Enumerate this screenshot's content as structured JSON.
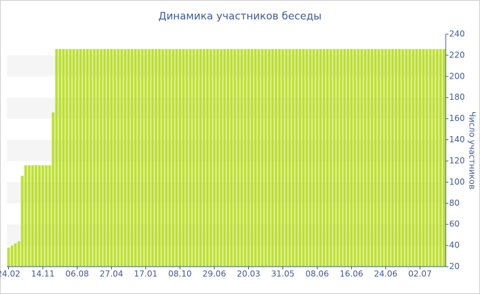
{
  "chart_data": {
    "type": "bar",
    "title": "Динамика участников беседы",
    "y_label": "Число участников",
    "color": "#bde033",
    "ylim": [
      20,
      240
    ],
    "yticks": [
      20,
      40,
      60,
      80,
      100,
      120,
      140,
      160,
      180,
      200,
      220,
      240
    ],
    "y_axis_side": "right",
    "grid": "bands",
    "categories": [
      "24.02",
      null,
      null,
      null,
      null,
      null,
      null,
      null,
      null,
      null,
      "14.11",
      null,
      null,
      null,
      null,
      null,
      null,
      null,
      null,
      null,
      "06.08",
      null,
      null,
      null,
      null,
      null,
      null,
      null,
      null,
      null,
      "27.04",
      null,
      null,
      null,
      null,
      null,
      null,
      null,
      null,
      null,
      "17.01",
      null,
      null,
      null,
      null,
      null,
      null,
      null,
      null,
      null,
      "08.10",
      null,
      null,
      null,
      null,
      null,
      null,
      null,
      null,
      null,
      "29.06",
      null,
      null,
      null,
      null,
      null,
      null,
      null,
      null,
      null,
      "20.03",
      null,
      null,
      null,
      null,
      null,
      null,
      null,
      null,
      null,
      "31.05",
      null,
      null,
      null,
      null,
      null,
      null,
      null,
      null,
      null,
      "08.06",
      null,
      null,
      null,
      null,
      null,
      null,
      null,
      null,
      null,
      "16.06",
      null,
      null,
      null,
      null,
      null,
      null,
      null,
      null,
      null,
      "24.06",
      null,
      null,
      null,
      null,
      null,
      null,
      null,
      null,
      null,
      "02.07",
      null,
      null,
      null,
      null,
      null,
      null,
      null
    ],
    "values": [
      38,
      40,
      42,
      44,
      106,
      116,
      116,
      116,
      116,
      116,
      116,
      116,
      116,
      166,
      226,
      226,
      226,
      226,
      226,
      226,
      226,
      226,
      226,
      226,
      226,
      226,
      226,
      226,
      226,
      226,
      226,
      226,
      226,
      226,
      226,
      226,
      226,
      226,
      226,
      226,
      226,
      226,
      226,
      226,
      226,
      226,
      226,
      226,
      226,
      226,
      226,
      226,
      226,
      226,
      226,
      226,
      226,
      226,
      226,
      226,
      226,
      226,
      226,
      226,
      226,
      226,
      226,
      226,
      226,
      226,
      226,
      226,
      226,
      226,
      226,
      226,
      226,
      226,
      226,
      226,
      226,
      226,
      226,
      226,
      226,
      226,
      226,
      226,
      226,
      226,
      226,
      226,
      226,
      226,
      226,
      226,
      226,
      226,
      226,
      226,
      226,
      226,
      226,
      226,
      226,
      226,
      226,
      226,
      226,
      226,
      226,
      226,
      226,
      226,
      226,
      226,
      226,
      226,
      226,
      226,
      226,
      226,
      226,
      226,
      226,
      226,
      226,
      226
    ]
  }
}
